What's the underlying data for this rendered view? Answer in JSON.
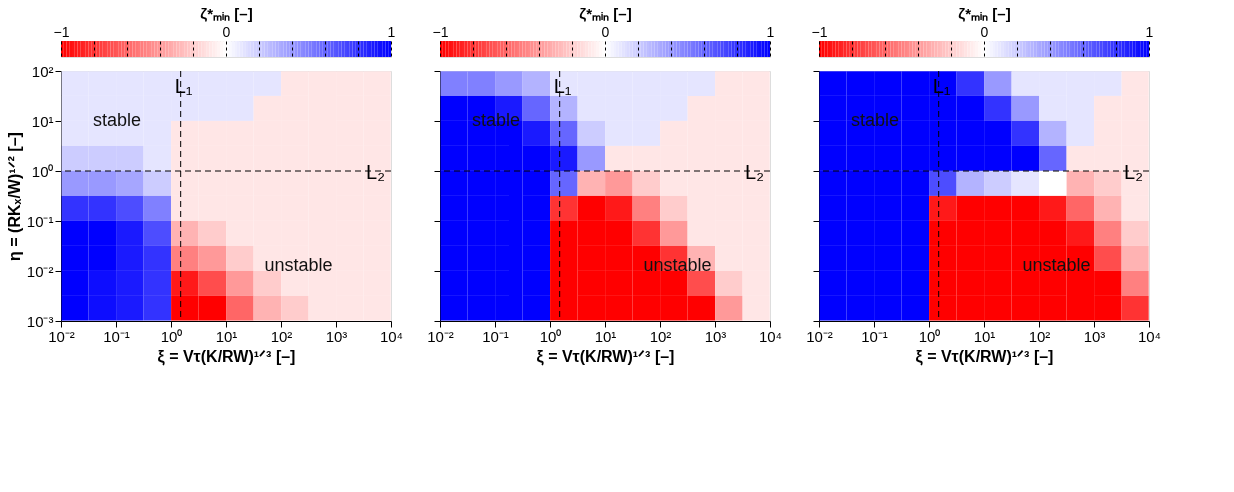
{
  "chart_data": [
    {
      "type": "heatmap",
      "xlabel": "ξ = Vτ(K/RW)¹ᐟ³ [–]",
      "ylabel": "η = (RKₓ/W)¹ᐟ² [–]",
      "clabel": "ζ*ₘᵢₙ [–]",
      "x": [
        0.018,
        0.056,
        0.18,
        0.56,
        1.8,
        5.6,
        18,
        56,
        180,
        560,
        1800,
        5600
      ],
      "y": [
        56,
        18,
        5.6,
        1.8,
        0.56,
        0.18,
        0.056,
        0.018,
        0.0056,
        0.0018
      ],
      "cells": [
        [
          0.1,
          0.1,
          0.1,
          0.1,
          0.1,
          0.1,
          0.1,
          0.1,
          -0.1,
          -0.1,
          -0.1,
          -0.1
        ],
        [
          0.1,
          0.1,
          0.1,
          0.1,
          0.1,
          0.1,
          0.1,
          -0.1,
          -0.1,
          -0.1,
          -0.1,
          -0.1
        ],
        [
          0.1,
          0.1,
          0.1,
          0.1,
          -0.1,
          -0.1,
          -0.1,
          -0.1,
          -0.1,
          -0.1,
          -0.1,
          -0.1
        ],
        [
          0.2,
          0.2,
          0.2,
          0.1,
          -0.1,
          -0.1,
          -0.1,
          -0.1,
          -0.1,
          -0.1,
          -0.1,
          -0.1
        ],
        [
          0.4,
          0.4,
          0.35,
          0.2,
          -0.1,
          -0.1,
          -0.1,
          -0.1,
          -0.1,
          -0.1,
          -0.1,
          -0.1
        ],
        [
          0.8,
          0.8,
          0.7,
          0.5,
          -0.1,
          -0.1,
          -0.1,
          -0.1,
          -0.1,
          -0.1,
          -0.1,
          -0.1
        ],
        [
          1,
          1,
          0.9,
          0.7,
          -0.3,
          -0.2,
          -0.1,
          -0.1,
          -0.1,
          -0.1,
          -0.1,
          -0.1
        ],
        [
          1,
          1,
          0.9,
          0.8,
          -0.5,
          -0.4,
          -0.2,
          -0.1,
          -0.1,
          -0.1,
          -0.1,
          -0.1
        ],
        [
          1,
          0.95,
          0.9,
          0.8,
          -0.9,
          -0.7,
          -0.4,
          -0.2,
          -0.1,
          -0.1,
          -0.1,
          -0.1
        ],
        [
          1,
          0.95,
          0.9,
          0.8,
          -1,
          -1,
          -0.6,
          -0.3,
          -0.2,
          -0.1,
          -0.1,
          -0.1
        ]
      ],
      "clim": [
        -1,
        1
      ],
      "cticks": [
        {
          "value": -1,
          "label": "−1"
        },
        {
          "value": -0.8,
          "label": null
        },
        {
          "value": -0.6,
          "label": null
        },
        {
          "value": -0.4,
          "label": null
        },
        {
          "value": -0.2,
          "label": null
        },
        0,
        {
          "value": 0.2,
          "label": null
        },
        {
          "value": 0.4,
          "label": null
        },
        {
          "value": 0.6,
          "label": null
        },
        {
          "value": 0.8,
          "label": null
        },
        1
      ],
      "log": "xy",
      "xlim": [
        0.01,
        10000
      ],
      "ylim": [
        0.001,
        100
      ],
      "xticks": [
        {
          "value": 0.01,
          "label": "10⁻²"
        },
        {
          "value": 0.1,
          "label": "10⁻¹"
        },
        {
          "value": 1,
          "label": "10⁰"
        },
        {
          "value": 10,
          "label": "10¹"
        },
        {
          "value": 100,
          "label": "10²"
        },
        {
          "value": 1000,
          "label": "10³"
        },
        {
          "value": 10000,
          "label": "10⁴"
        }
      ],
      "yticks": [
        {
          "value": 0.001,
          "label": "10⁻³"
        },
        {
          "value": 0.01,
          "label": "10⁻²"
        },
        {
          "value": 0.1,
          "label": "10⁻¹"
        },
        {
          "value": 1,
          "label": "10⁰"
        },
        {
          "value": 10,
          "label": "10¹"
        },
        {
          "value": 100,
          "label": "10²"
        }
      ],
      "ref_lines": [
        {
          "axis": "x",
          "value": 1.5,
          "label": "L₁",
          "line_style": "dashed"
        },
        {
          "axis": "y",
          "value": 1,
          "label": "L₂",
          "line_style": "dashed"
        }
      ],
      "annotations": [
        "stable",
        "unstable"
      ]
    },
    {
      "type": "heatmap",
      "xlabel": "ξ = Vτ(K/RW)¹ᐟ³ [–]",
      "clabel": "ζ*ₘᵢₙ [–]",
      "tick_labels": "x",
      "x": [
        0.018,
        0.056,
        0.18,
        0.56,
        1.8,
        5.6,
        18,
        56,
        180,
        560,
        1800,
        5600
      ],
      "y": [
        56,
        18,
        5.6,
        1.8,
        0.56,
        0.18,
        0.056,
        0.018,
        0.0056,
        0.0018
      ],
      "cells": [
        [
          0.5,
          0.5,
          0.4,
          0.3,
          0.1,
          0.1,
          0.1,
          0.1,
          0.1,
          0.1,
          -0.1,
          -0.1
        ],
        [
          1,
          1,
          0.9,
          0.6,
          0.3,
          0.1,
          0.1,
          0.1,
          0.1,
          -0.1,
          -0.1,
          -0.1
        ],
        [
          1,
          1,
          1,
          0.9,
          0.6,
          0.2,
          0.1,
          0.1,
          -0.1,
          -0.1,
          -0.1,
          -0.1
        ],
        [
          1,
          1,
          1,
          1,
          0.9,
          0.4,
          -0.1,
          -0.1,
          -0.1,
          -0.1,
          -0.1,
          -0.1
        ],
        [
          1,
          1,
          1,
          1,
          0.6,
          -0.3,
          -0.4,
          -0.2,
          -0.1,
          -0.1,
          -0.1,
          -0.1
        ],
        [
          1,
          1,
          1,
          1,
          -0.8,
          -1,
          -0.9,
          -0.5,
          -0.2,
          -0.1,
          -0.1,
          -0.1
        ],
        [
          1,
          1,
          1,
          1,
          -1,
          -1,
          -1,
          -0.8,
          -0.4,
          -0.1,
          -0.1,
          -0.1
        ],
        [
          1,
          1,
          1,
          1,
          -1,
          -1,
          -1,
          -1,
          -0.8,
          -0.3,
          -0.1,
          -0.1
        ],
        [
          1,
          1,
          1,
          1,
          -1,
          -1,
          -1,
          -1,
          -1,
          -0.7,
          -0.2,
          -0.1
        ],
        [
          1,
          1,
          1,
          1,
          -1,
          -1,
          -1,
          -1,
          -1,
          -1,
          -0.4,
          -0.1
        ]
      ],
      "clim": [
        -1,
        1
      ],
      "cticks": [
        {
          "value": -1,
          "label": "−1"
        },
        {
          "value": -0.8,
          "label": null
        },
        {
          "value": -0.6,
          "label": null
        },
        {
          "value": -0.4,
          "label": null
        },
        {
          "value": -0.2,
          "label": null
        },
        0,
        {
          "value": 0.2,
          "label": null
        },
        {
          "value": 0.4,
          "label": null
        },
        {
          "value": 0.6,
          "label": null
        },
        {
          "value": 0.8,
          "label": null
        },
        1
      ],
      "log": "xy",
      "xlim": [
        0.01,
        10000
      ],
      "ylim": [
        0.001,
        100
      ],
      "xticks": [
        {
          "value": 0.01,
          "label": "10⁻²"
        },
        {
          "value": 0.1,
          "label": "10⁻¹"
        },
        {
          "value": 1,
          "label": "10⁰"
        },
        {
          "value": 10,
          "label": "10¹"
        },
        {
          "value": 100,
          "label": "10²"
        },
        {
          "value": 1000,
          "label": "10³"
        },
        {
          "value": 10000,
          "label": "10⁴"
        }
      ],
      "yticks": [
        {
          "value": 0.001,
          "label": null
        },
        {
          "value": 0.01,
          "label": null
        },
        {
          "value": 0.1,
          "label": null
        },
        {
          "value": 1,
          "label": null
        },
        {
          "value": 10,
          "label": null
        },
        {
          "value": 100,
          "label": null
        }
      ],
      "ref_lines": [
        {
          "axis": "x",
          "value": 1.5,
          "label": "L₁",
          "line_style": "dashed"
        },
        {
          "axis": "y",
          "value": 1,
          "label": "L₂",
          "line_style": "dashed"
        }
      ],
      "annotations": [
        "stable",
        "unstable"
      ]
    },
    {
      "type": "heatmap",
      "xlabel": "ξ = Vτ(K/RW)¹ᐟ³ [–]",
      "clabel": "ζ*ₘᵢₙ [–]",
      "tick_labels": "x",
      "x": [
        0.018,
        0.056,
        0.18,
        0.56,
        1.8,
        5.6,
        18,
        56,
        180,
        560,
        1800,
        5600
      ],
      "y": [
        56,
        18,
        5.6,
        1.8,
        0.56,
        0.18,
        0.056,
        0.018,
        0.0056,
        0.0018
      ],
      "cells": [
        [
          1,
          1,
          1,
          1,
          1,
          0.8,
          0.4,
          0.1,
          0.1,
          0.1,
          0.1,
          -0.1
        ],
        [
          1,
          1,
          1,
          1,
          1,
          1,
          0.8,
          0.4,
          0.1,
          0.1,
          -0.1,
          -0.1
        ],
        [
          1,
          1,
          1,
          1,
          1,
          1,
          1,
          0.8,
          0.3,
          0.1,
          -0.1,
          -0.1
        ],
        [
          1,
          1,
          1,
          1,
          1,
          1,
          1,
          1,
          0.6,
          -0.1,
          -0.1,
          -0.1
        ],
        [
          1,
          1,
          1,
          1,
          0.7,
          0.3,
          0.2,
          0.1,
          0,
          -0.3,
          -0.2,
          -0.1
        ],
        [
          1,
          1,
          1,
          1,
          -0.9,
          -1,
          -1,
          -1,
          -0.9,
          -0.6,
          -0.3,
          -0.1
        ],
        [
          1,
          1,
          1,
          1,
          -1,
          -1,
          -1,
          -1,
          -1,
          -0.9,
          -0.5,
          -0.2
        ],
        [
          1,
          1,
          1,
          1,
          -1,
          -1,
          -1,
          -1,
          -1,
          -1,
          -0.7,
          -0.3
        ],
        [
          1,
          1,
          1,
          1,
          -1,
          -1,
          -1,
          -1,
          -1,
          -1,
          -1,
          -0.5
        ],
        [
          1,
          1,
          1,
          1,
          -1,
          -1,
          -1,
          -1,
          -1,
          -1,
          -1,
          -0.8
        ]
      ],
      "clim": [
        -1,
        1
      ],
      "cticks": [
        {
          "value": -1,
          "label": "−1"
        },
        {
          "value": -0.8,
          "label": null
        },
        {
          "value": -0.6,
          "label": null
        },
        {
          "value": -0.4,
          "label": null
        },
        {
          "value": -0.2,
          "label": null
        },
        0,
        {
          "value": 0.2,
          "label": null
        },
        {
          "value": 0.4,
          "label": null
        },
        {
          "value": 0.6,
          "label": null
        },
        {
          "value": 0.8,
          "label": null
        },
        1
      ],
      "log": "xy",
      "xlim": [
        0.01,
        10000
      ],
      "ylim": [
        0.001,
        100
      ],
      "xticks": [
        {
          "value": 0.01,
          "label": "10⁻²"
        },
        {
          "value": 0.1,
          "label": "10⁻¹"
        },
        {
          "value": 1,
          "label": "10⁰"
        },
        {
          "value": 10,
          "label": "10¹"
        },
        {
          "value": 100,
          "label": "10²"
        },
        {
          "value": 1000,
          "label": "10³"
        },
        {
          "value": 10000,
          "label": "10⁴"
        }
      ],
      "yticks": [
        {
          "value": 0.001,
          "label": null
        },
        {
          "value": 0.01,
          "label": null
        },
        {
          "value": 0.1,
          "label": null
        },
        {
          "value": 1,
          "label": null
        },
        {
          "value": 10,
          "label": null
        },
        {
          "value": 100,
          "label": null
        }
      ],
      "ref_lines": [
        {
          "axis": "x",
          "value": 1.5,
          "label": "L₁",
          "line_style": "dashed"
        },
        {
          "axis": "y",
          "value": 1,
          "label": "L₂",
          "line_style": "dashed"
        }
      ],
      "annotations": [
        "stable",
        "unstable"
      ]
    }
  ]
}
